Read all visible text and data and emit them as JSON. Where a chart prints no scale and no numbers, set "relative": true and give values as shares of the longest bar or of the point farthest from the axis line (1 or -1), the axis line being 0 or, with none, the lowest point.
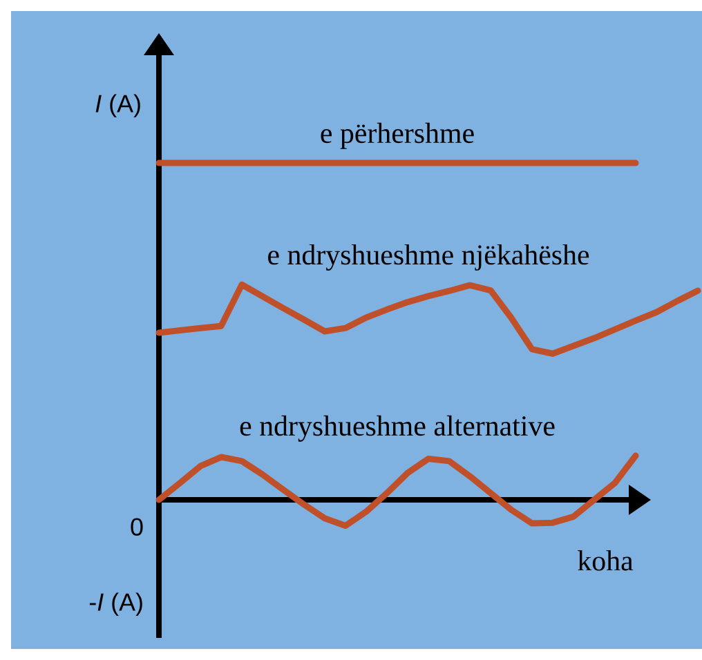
{
  "chart_data": {
    "type": "line",
    "relative": true,
    "ylabel": "*I* (A)",
    "xlabel": "koha",
    "annotations": [
      "0",
      "-*I* (A)"
    ],
    "marker": "none",
    "line_style": "solid",
    "categories": [
      null,
      null,
      null,
      null,
      null,
      null,
      null,
      null,
      null,
      null,
      null,
      null,
      null,
      null,
      null,
      null,
      null,
      null,
      null,
      null,
      null,
      null,
      null,
      null,
      null,
      null,
      null
    ],
    "series": [
      {
        "name": "e përhershme",
        "color": "#c0502a",
        "values": [
          1.0,
          1.0,
          1.0,
          1.0,
          1.0,
          1.0,
          1.0,
          1.0,
          1.0,
          1.0,
          1.0,
          1.0,
          1.0,
          1.0,
          1.0,
          1.0,
          1.0,
          1.0,
          1.0,
          1.0,
          1.0,
          1.0,
          1.0,
          1.0,
          null,
          null,
          null
        ]
      },
      {
        "name": "e ndryshueshme njëkahëshe",
        "color": "#c0502a",
        "values": [
          0.496,
          0.503,
          0.51,
          0.516,
          0.639,
          0.604,
          0.569,
          0.535,
          0.5,
          0.51,
          0.541,
          0.565,
          0.587,
          0.605,
          0.62,
          0.637,
          0.622,
          0.54,
          0.447,
          0.434,
          0.457,
          0.48,
          0.506,
          0.532,
          0.557,
          0.59,
          0.621
        ]
      },
      {
        "name": "e ndryshueshme alternative",
        "color": "#c0502a",
        "values": [
          0,
          0.049,
          0.1,
          0.127,
          0.115,
          0.075,
          0.03,
          -0.014,
          -0.055,
          -0.077,
          -0.035,
          0.02,
          0.08,
          0.122,
          0.115,
          0.07,
          0.02,
          -0.03,
          -0.07,
          -0.068,
          -0.05,
          0,
          0.05,
          0.131,
          null,
          null,
          null
        ]
      }
    ]
  }
}
